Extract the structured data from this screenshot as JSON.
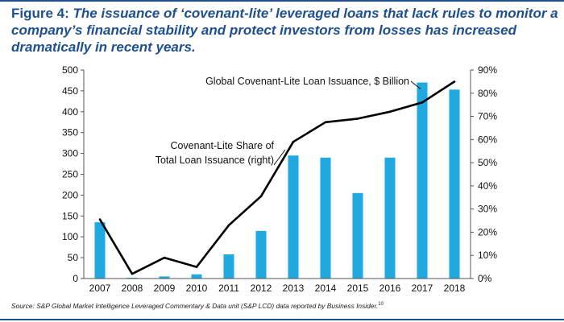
{
  "figure": {
    "label": "Figure 4:",
    "title": "The issuance of ‘covenant-lite’ leveraged loans that lack rules to monitor a company’s financial stability and protect investors from losses has increased dramatically in recent years.",
    "source": "Source: S&P Global Market Intelligence Leveraged Commentary & Data unit (S&P LCD) data reported by Business Insider.",
    "source_note": "10"
  },
  "colors": {
    "bar": "#1ea9e1",
    "line": "#000000",
    "accent": "#1d4f91"
  },
  "chart_data": {
    "type": "bar+line",
    "categories": [
      "2007",
      "2008",
      "2009",
      "2010",
      "2011",
      "2012",
      "2013",
      "2014",
      "2015",
      "2016",
      "2017",
      "2018"
    ],
    "series": [
      {
        "name": "Global Covenant-Lite Loan Issuance, $ Billion",
        "type": "bar",
        "axis": "left",
        "values": [
          135,
          2,
          5,
          10,
          58,
          114,
          295,
          290,
          205,
          290,
          470,
          453
        ]
      },
      {
        "name": "Covenant-Lite Share of Total Loan Issuance (right)",
        "type": "line",
        "axis": "right",
        "values": [
          25.5,
          2,
          9,
          5,
          23,
          35.5,
          59,
          67.5,
          69,
          72,
          76,
          85
        ]
      }
    ],
    "left_axis": {
      "ticks": [
        0,
        50,
        100,
        150,
        200,
        250,
        300,
        350,
        400,
        450,
        500
      ],
      "ylim": [
        0,
        500
      ]
    },
    "right_axis": {
      "ticks": [
        "0%",
        "10%",
        "20%",
        "30%",
        "40%",
        "50%",
        "60%",
        "70%",
        "80%",
        "90%"
      ],
      "ylim": [
        0,
        90
      ]
    },
    "annotations": {
      "bar_label": "Global Covenant-Lite Loan Issuance, $ Billion",
      "line_label_1": "Covenant-Lite Share of",
      "line_label_2": "Total Loan Issuance (right)"
    },
    "grid": false,
    "legend": "none"
  }
}
